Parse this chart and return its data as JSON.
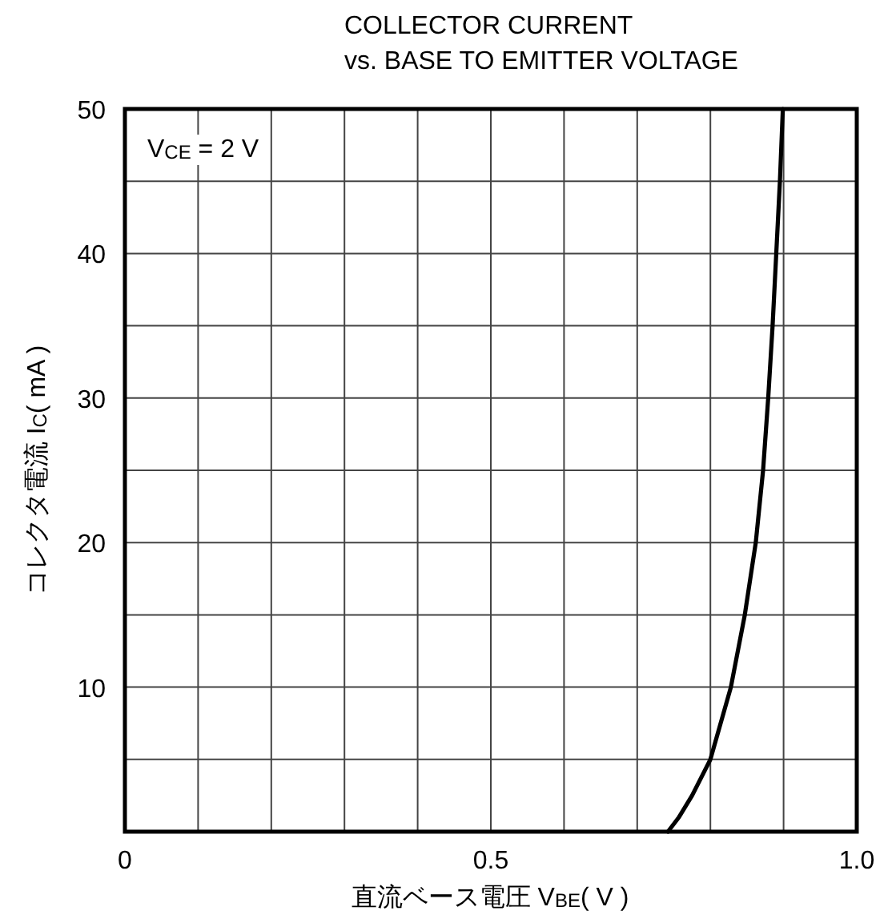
{
  "chart_data": {
    "type": "line",
    "title": "COLLECTOR CURRENT\nvs. BASE TO EMITTER VOLTAGE",
    "xlabel": "直流ベース電圧 V$_{BE}$( V )",
    "ylabel": "コレクタ電流 I$_{C}$( mA )",
    "annotations": [
      "V$_{CE}$ = 2 V"
    ],
    "series": [
      {
        "color": "#000000",
        "x": [
          0.742,
          0.757,
          0.775,
          0.8,
          0.828,
          0.847,
          0.862,
          0.872,
          0.879,
          0.885,
          0.89,
          0.895,
          0.899
        ],
        "values": [
          0,
          1,
          2.5,
          5,
          10,
          15,
          20,
          25,
          30,
          35,
          40,
          45,
          50
        ]
      }
    ],
    "xlim": [
      0,
      1
    ],
    "ylim": [
      0,
      50
    ],
    "xticks": [
      0,
      {
        "value": 0.1,
        "label": null
      },
      {
        "value": 0.2,
        "label": null
      },
      {
        "value": 0.3,
        "label": null
      },
      {
        "value": 0.4,
        "label": null
      },
      0.5,
      {
        "value": 0.6,
        "label": null
      },
      {
        "value": 0.7,
        "label": null
      },
      {
        "value": 0.8,
        "label": null
      },
      {
        "value": 0.9,
        "label": null
      },
      {
        "value": 1,
        "label": "1.0"
      }
    ],
    "yticks": [
      {
        "value": 0,
        "label": null
      },
      {
        "value": 5,
        "label": null
      },
      10,
      {
        "value": 15,
        "label": null
      },
      20,
      {
        "value": 25,
        "label": null
      },
      30,
      {
        "value": 35,
        "label": null
      },
      40,
      {
        "value": 45,
        "label": null
      },
      50
    ],
    "grid": true,
    "marker": "none",
    "line_style": "solid"
  }
}
